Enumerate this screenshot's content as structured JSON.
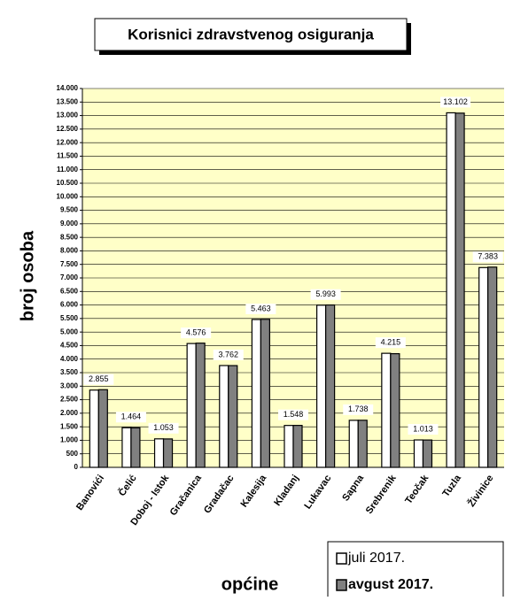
{
  "chart_data": {
    "type": "bar",
    "title": "Korisnici zdravstvenog osiguranja",
    "x_label": "općine",
    "y_label": "broj osoba",
    "categories": [
      "Banovići",
      "Čelić",
      "Doboj - Istok",
      "Gračanica",
      "Gradačac",
      "Kalesija",
      "Kladanj",
      "Lukavac",
      "Sapna",
      "Srebrenik",
      "Teočak",
      "Tuzla",
      "Živinice"
    ],
    "series": [
      {
        "name": "juli 2017.",
        "color": "#ffffff",
        "values": [
          2855,
          1464,
          1053,
          4576,
          3762,
          5463,
          1548,
          5993,
          1738,
          4215,
          1013,
          13102,
          7383
        ],
        "value_labels": [
          "2.855",
          "1.464",
          "1.053",
          "4.576",
          "3.762",
          "5.463",
          "1.548",
          "5.993",
          "1.738",
          "4.215",
          "1.013",
          "13.102",
          "7.383"
        ]
      },
      {
        "name": "avgust 2017.",
        "color": "#808080",
        "values": [
          2870,
          1460,
          1050,
          4590,
          3760,
          5470,
          1550,
          6000,
          1740,
          4200,
          1010,
          13090,
          7400
        ]
      }
    ],
    "ylim": [
      0,
      14000
    ],
    "yticks": [
      0,
      500,
      {
        "value": 1000,
        "label": "1.000"
      },
      {
        "value": 1500,
        "label": "1.500"
      },
      {
        "value": 2000,
        "label": "2.000"
      },
      {
        "value": 2500,
        "label": "2.500"
      },
      {
        "value": 3000,
        "label": "3.000"
      },
      {
        "value": 3500,
        "label": "3.500"
      },
      {
        "value": 4000,
        "label": "4.000"
      },
      {
        "value": 4500,
        "label": "4.500"
      },
      {
        "value": 5000,
        "label": "5.000"
      },
      {
        "value": 5500,
        "label": "5.500"
      },
      {
        "value": 6000,
        "label": "6.000"
      },
      {
        "value": 6500,
        "label": "6.500"
      },
      {
        "value": 7000,
        "label": "7.000"
      },
      {
        "value": 7500,
        "label": "7.500"
      },
      {
        "value": 8000,
        "label": "8.000"
      },
      {
        "value": 8500,
        "label": "8.500"
      },
      {
        "value": 9000,
        "label": "9.000"
      },
      {
        "value": 9500,
        "label": "9.500"
      },
      {
        "value": 10000,
        "label": "10.000"
      },
      {
        "value": 10500,
        "label": "10.500"
      },
      {
        "value": 11000,
        "label": "11.000"
      },
      {
        "value": 11500,
        "label": "11.500"
      },
      {
        "value": 12000,
        "label": "12.000"
      },
      {
        "value": 12500,
        "label": "12.500"
      },
      {
        "value": 13000,
        "label": "13.000"
      },
      {
        "value": 13500,
        "label": "13.500"
      },
      {
        "value": 14000,
        "label": "14.000"
      }
    ],
    "grid": true,
    "plot_background": "#ffffc8",
    "legend": "bottom-right"
  }
}
